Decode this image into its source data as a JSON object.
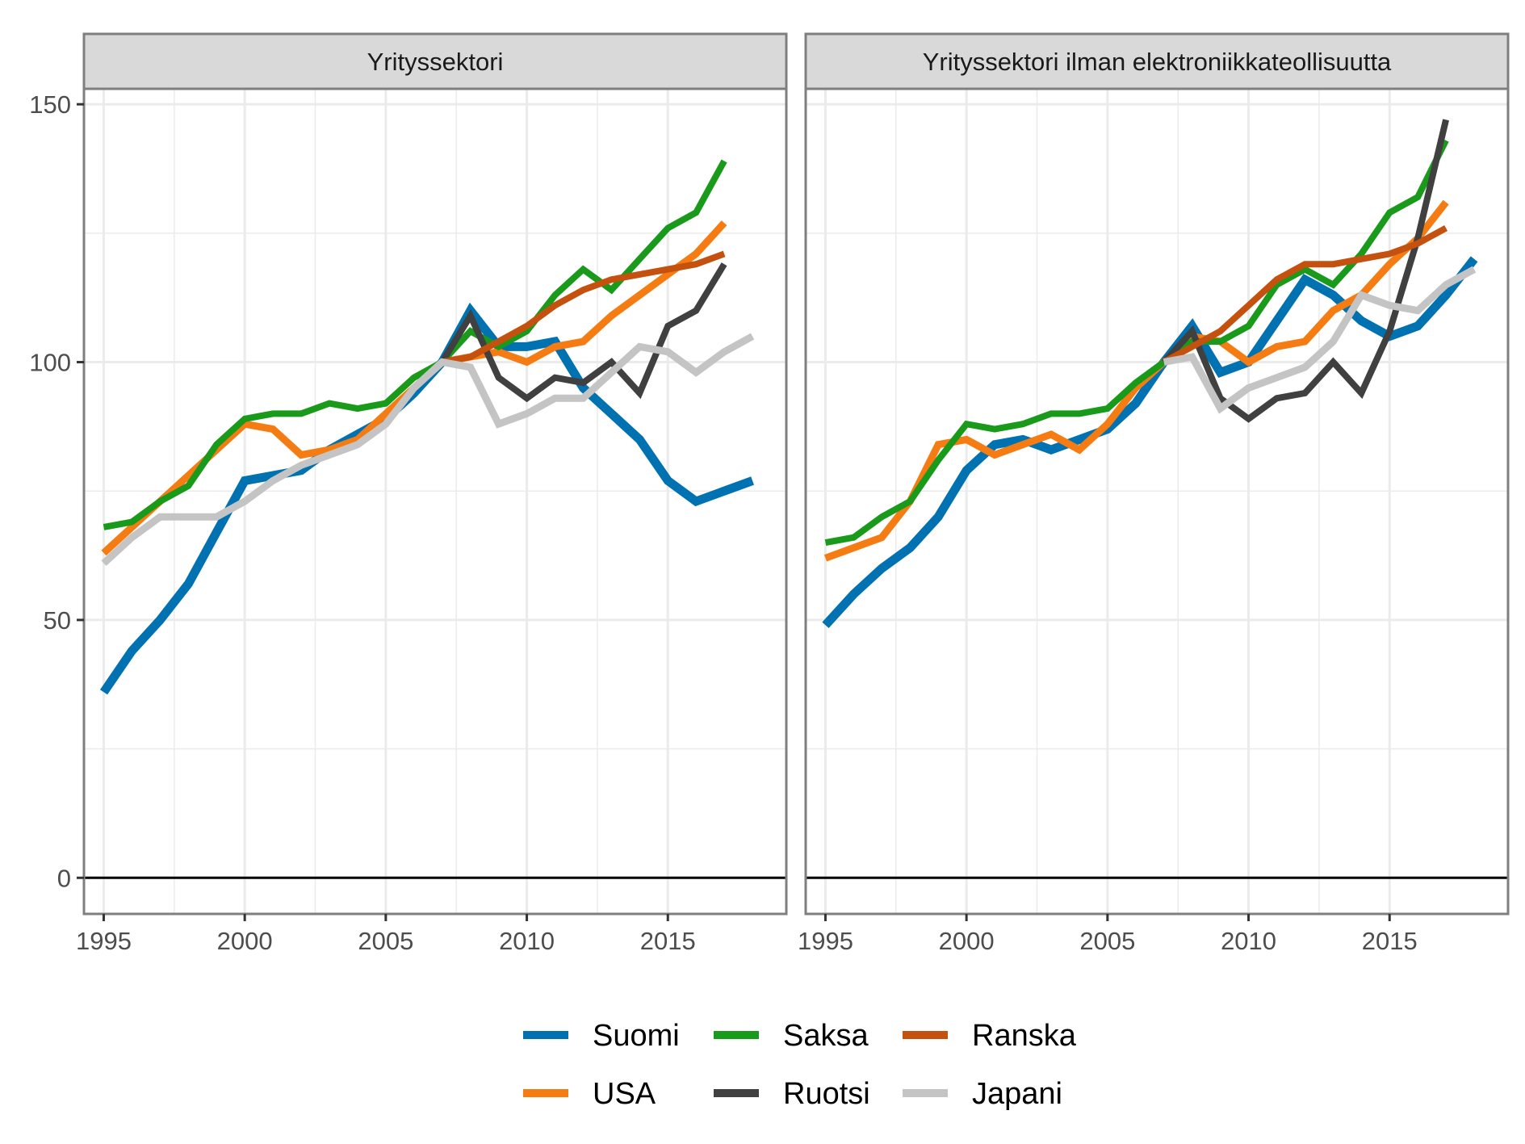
{
  "chart_data": [
    {
      "type": "line",
      "title": "Yrityssektori",
      "xlim": [
        1994.3,
        2019.2
      ],
      "ylim": [
        -7,
        153
      ],
      "x_ticks": [
        1995,
        2000,
        2005,
        2010,
        2015
      ],
      "y_ticks": [
        0,
        50,
        100,
        150
      ],
      "grid": true,
      "reference_line": 0,
      "series": [
        {
          "name": "Suomi",
          "x": [
            1995,
            1996,
            1997,
            1998,
            1999,
            2000,
            2001,
            2002,
            2003,
            2004,
            2005,
            2006,
            2007,
            2008,
            2009,
            2010,
            2011,
            2012,
            2013,
            2014,
            2015,
            2016,
            2017,
            2018
          ],
          "values": [
            36,
            44,
            50,
            57,
            67,
            77,
            78,
            79,
            83,
            86,
            89,
            94,
            100,
            110,
            103,
            103,
            104,
            95,
            90,
            85,
            77,
            73,
            75,
            77
          ]
        },
        {
          "name": "USA",
          "x": [
            1995,
            1996,
            1997,
            1998,
            1999,
            2000,
            2001,
            2002,
            2003,
            2004,
            2005,
            2006,
            2007,
            2008,
            2009,
            2010,
            2011,
            2012,
            2013,
            2014,
            2015,
            2016,
            2017
          ],
          "values": [
            63,
            68,
            73,
            78,
            83,
            88,
            87,
            82,
            83,
            85,
            90,
            95,
            100,
            101,
            102,
            100,
            103,
            104,
            109,
            113,
            117,
            121,
            127
          ]
        },
        {
          "name": "Saksa",
          "x": [
            1995,
            1996,
            1997,
            1998,
            1999,
            2000,
            2001,
            2002,
            2003,
            2004,
            2005,
            2006,
            2007,
            2008,
            2009,
            2010,
            2011,
            2012,
            2013,
            2014,
            2015,
            2016,
            2017
          ],
          "values": [
            68,
            69,
            73,
            76,
            84,
            89,
            90,
            90,
            92,
            91,
            92,
            97,
            100,
            106,
            103,
            106,
            113,
            118,
            114,
            120,
            126,
            129,
            139
          ]
        },
        {
          "name": "Ruotsi",
          "x": [
            2007,
            2008,
            2009,
            2010,
            2011,
            2012,
            2013,
            2014,
            2015,
            2016,
            2017
          ],
          "values": [
            100,
            109,
            97,
            93,
            97,
            96,
            100,
            94,
            107,
            110,
            119
          ]
        },
        {
          "name": "Ranska",
          "x": [
            2007,
            2008,
            2009,
            2010,
            2011,
            2012,
            2013,
            2014,
            2015,
            2016,
            2017
          ],
          "values": [
            100,
            101,
            104,
            107,
            111,
            114,
            116,
            117,
            118,
            119,
            121
          ]
        },
        {
          "name": "Japani",
          "x": [
            1995,
            1996,
            1997,
            1998,
            1999,
            2000,
            2001,
            2002,
            2003,
            2004,
            2005,
            2006,
            2007,
            2008,
            2009,
            2010,
            2011,
            2012,
            2013,
            2014,
            2015,
            2016,
            2017,
            2018
          ],
          "values": [
            61,
            66,
            70,
            70,
            70,
            73,
            77,
            80,
            82,
            84,
            88,
            95,
            100,
            99,
            88,
            90,
            93,
            93,
            98,
            103,
            102,
            98,
            102,
            105
          ]
        }
      ]
    },
    {
      "type": "line",
      "title": "Yrityssektori ilman elektroniikkateollisuutta",
      "xlim": [
        1994.3,
        2019.2
      ],
      "ylim": [
        -7,
        153
      ],
      "x_ticks": [
        1995,
        2000,
        2005,
        2010,
        2015
      ],
      "y_ticks": [
        0,
        50,
        100,
        150
      ],
      "grid": true,
      "reference_line": 0,
      "series": [
        {
          "name": "Suomi",
          "x": [
            1995,
            1996,
            1997,
            1998,
            1999,
            2000,
            2001,
            2002,
            2003,
            2004,
            2005,
            2006,
            2007,
            2008,
            2009,
            2010,
            2011,
            2012,
            2013,
            2014,
            2015,
            2016,
            2017,
            2018
          ],
          "values": [
            49,
            55,
            60,
            64,
            70,
            79,
            84,
            85,
            83,
            85,
            87,
            92,
            100,
            107,
            98,
            100,
            108,
            116,
            113,
            108,
            105,
            107,
            113,
            120
          ]
        },
        {
          "name": "USA",
          "x": [
            1995,
            1996,
            1997,
            1998,
            1999,
            2000,
            2001,
            2002,
            2003,
            2004,
            2005,
            2006,
            2007,
            2008,
            2009,
            2010,
            2011,
            2012,
            2013,
            2014,
            2015,
            2016,
            2017
          ],
          "values": [
            62,
            64,
            66,
            73,
            84,
            85,
            82,
            84,
            86,
            83,
            88,
            95,
            100,
            105,
            104,
            100,
            103,
            104,
            110,
            113,
            119,
            124,
            131
          ]
        },
        {
          "name": "Saksa",
          "x": [
            1995,
            1996,
            1997,
            1998,
            1999,
            2000,
            2001,
            2002,
            2003,
            2004,
            2005,
            2006,
            2007,
            2008,
            2009,
            2010,
            2011,
            2012,
            2013,
            2014,
            2015,
            2016,
            2017
          ],
          "values": [
            65,
            66,
            70,
            73,
            81,
            88,
            87,
            88,
            90,
            90,
            91,
            96,
            100,
            104,
            104,
            107,
            115,
            118,
            115,
            121,
            129,
            132,
            143
          ]
        },
        {
          "name": "Ruotsi",
          "x": [
            2007,
            2008,
            2009,
            2010,
            2011,
            2012,
            2013,
            2014,
            2015,
            2016,
            2017
          ],
          "values": [
            100,
            106,
            93,
            89,
            93,
            94,
            100,
            94,
            106,
            124,
            147
          ]
        },
        {
          "name": "Ranska",
          "x": [
            2007,
            2008,
            2009,
            2010,
            2011,
            2012,
            2013,
            2014,
            2015,
            2016,
            2017
          ],
          "values": [
            100,
            103,
            106,
            111,
            116,
            119,
            119,
            120,
            121,
            123,
            126
          ]
        },
        {
          "name": "Japani",
          "x": [
            2007,
            2008,
            2009,
            2010,
            2011,
            2012,
            2013,
            2014,
            2015,
            2016,
            2017,
            2018
          ],
          "values": [
            100,
            101,
            91,
            95,
            97,
            99,
            104,
            113,
            111,
            110,
            115,
            118
          ]
        }
      ]
    }
  ],
  "legend": {
    "placement": "bottom",
    "items": [
      {
        "name": "Suomi",
        "color": "#0072b2"
      },
      {
        "name": "Saksa",
        "color": "#1a9a1a"
      },
      {
        "name": "Ranska",
        "color": "#c5510e"
      },
      {
        "name": "USA",
        "color": "#f57c12"
      },
      {
        "name": "Ruotsi",
        "color": "#404040"
      },
      {
        "name": "Japani",
        "color": "#c4c4c4"
      }
    ]
  },
  "colors": {
    "Suomi": "#0072b2",
    "USA": "#f57c12",
    "Saksa": "#1a9a1a",
    "Ruotsi": "#404040",
    "Ranska": "#c5510e",
    "Japani": "#c4c4c4",
    "grid": "#ebebeb",
    "panel_border": "#7f7f7f",
    "strip_fill": "#d9d9d9",
    "zero_line": "#000000"
  }
}
